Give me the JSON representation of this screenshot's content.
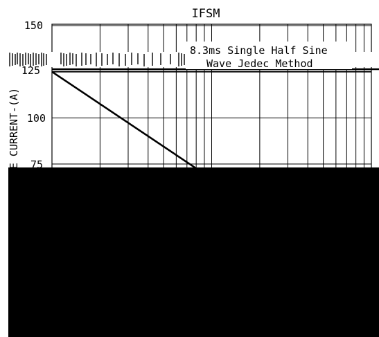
{
  "chart_data": {
    "type": "line",
    "title": "IFSM",
    "annotation_lines": [
      "8.3ms Single Half Sine",
      "Wave Jedec Method"
    ],
    "ylabel": "GE CURRENT-(A)",
    "xlabel": "",
    "y_ticks": [
      "150",
      "125",
      "100",
      "75"
    ],
    "ylim": [
      68,
      150
    ],
    "xlim": [
      1,
      100
    ],
    "x_scale": "log",
    "grid": true,
    "series": [
      {
        "values_x": [
          1,
          10
        ],
        "values_y": [
          125,
          67
        ]
      }
    ],
    "colors": {
      "line": "#000000",
      "grid": "#000000",
      "background": "#ffffff",
      "occluder": "#000000"
    }
  }
}
